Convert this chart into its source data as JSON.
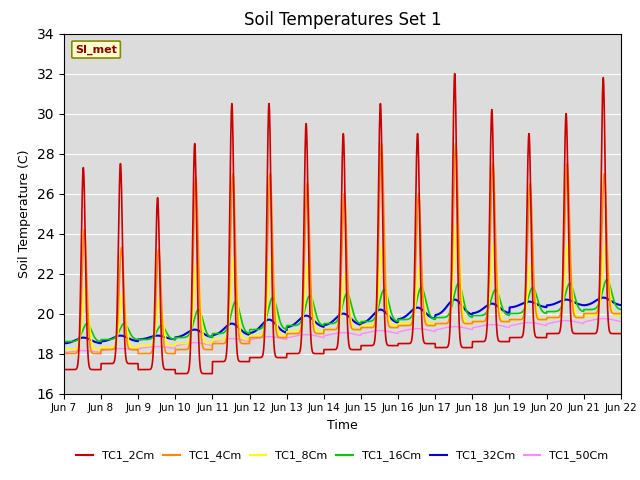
{
  "title": "Soil Temperatures Set 1",
  "xlabel": "Time",
  "ylabel": "Soil Temperature (C)",
  "ylim": [
    16,
    34
  ],
  "yticks": [
    16,
    18,
    20,
    22,
    24,
    26,
    28,
    30,
    32,
    34
  ],
  "annotation": "SI_met",
  "background_color": "#dcdcdc",
  "series": [
    {
      "label": "TC1_2Cm",
      "color": "#cc0000"
    },
    {
      "label": "TC1_4Cm",
      "color": "#ff8800"
    },
    {
      "label": "TC1_8Cm",
      "color": "#ffff00"
    },
    {
      "label": "TC1_16Cm",
      "color": "#00cc00"
    },
    {
      "label": "TC1_32Cm",
      "color": "#0000dd"
    },
    {
      "label": "TC1_50Cm",
      "color": "#ff88ff"
    }
  ],
  "num_days": 15,
  "start_day": 7,
  "points_per_day": 144,
  "base_temp_2cm": [
    17.2,
    17.5,
    17.2,
    17.0,
    17.6,
    17.8,
    18.0,
    18.2,
    18.4,
    18.5,
    18.3,
    18.6,
    18.8,
    19.0,
    19.0
  ],
  "peak_temp_2cm": [
    27.3,
    27.5,
    25.8,
    28.5,
    30.5,
    30.5,
    29.5,
    29.0,
    30.5,
    29.0,
    32.0,
    30.2,
    29.0,
    30.0,
    31.8
  ],
  "peak_hour_2cm": [
    0.52,
    0.52,
    0.52,
    0.52,
    0.52,
    0.52,
    0.52,
    0.52,
    0.52,
    0.52,
    0.52,
    0.52,
    0.52,
    0.52,
    0.52
  ],
  "base_temp_4cm": [
    18.0,
    18.2,
    18.0,
    18.2,
    18.5,
    18.8,
    19.0,
    19.2,
    19.3,
    19.4,
    19.5,
    19.6,
    19.7,
    19.8,
    20.0
  ],
  "peak_temp_4cm": [
    24.2,
    23.3,
    23.2,
    26.8,
    27.0,
    27.0,
    26.5,
    26.0,
    28.5,
    26.0,
    28.5,
    27.5,
    26.5,
    27.5,
    27.0
  ],
  "peak_hour_4cm": [
    0.55,
    0.55,
    0.55,
    0.55,
    0.55,
    0.55,
    0.55,
    0.55,
    0.55,
    0.55,
    0.55,
    0.55,
    0.55,
    0.55,
    0.55
  ],
  "base_temp_8cm": [
    18.2,
    18.3,
    18.4,
    18.5,
    18.7,
    18.9,
    19.1,
    19.2,
    19.4,
    19.5,
    19.5,
    19.6,
    19.7,
    19.8,
    19.9
  ],
  "peak_temp_8cm": [
    21.3,
    21.0,
    20.8,
    22.5,
    22.8,
    22.8,
    22.5,
    22.0,
    23.5,
    22.3,
    24.5,
    23.5,
    22.5,
    23.5,
    23.5
  ],
  "peak_hour_8cm": [
    0.58,
    0.58,
    0.58,
    0.58,
    0.58,
    0.58,
    0.58,
    0.58,
    0.58,
    0.58,
    0.58,
    0.58,
    0.58,
    0.58,
    0.58
  ],
  "base_temp_16cm": [
    18.6,
    18.7,
    18.7,
    18.8,
    19.0,
    19.2,
    19.4,
    19.5,
    19.6,
    19.7,
    19.8,
    19.9,
    20.0,
    20.1,
    20.2
  ],
  "peak_temp_16cm": [
    19.5,
    19.5,
    19.4,
    20.2,
    20.6,
    20.8,
    20.9,
    21.0,
    21.2,
    21.3,
    21.5,
    21.2,
    21.3,
    21.5,
    21.7
  ],
  "peak_hour_16cm": [
    0.62,
    0.62,
    0.62,
    0.62,
    0.62,
    0.62,
    0.62,
    0.62,
    0.62,
    0.62,
    0.62,
    0.62,
    0.62,
    0.62,
    0.62
  ],
  "base_temp_32cm": [
    18.5,
    18.6,
    18.7,
    18.8,
    18.9,
    19.0,
    19.3,
    19.4,
    19.5,
    19.7,
    19.9,
    20.0,
    20.3,
    20.4,
    20.4
  ],
  "peak_temp_32cm": [
    18.8,
    18.9,
    18.9,
    19.2,
    19.5,
    19.7,
    19.9,
    20.0,
    20.2,
    20.3,
    20.7,
    20.5,
    20.6,
    20.7,
    20.8
  ],
  "base_temp_50cm": [
    18.0,
    18.1,
    18.2,
    18.3,
    18.5,
    18.6,
    18.7,
    18.8,
    18.9,
    19.0,
    19.1,
    19.2,
    19.3,
    19.4,
    19.5
  ],
  "peak_temp_50cm": [
    18.15,
    18.25,
    18.35,
    18.55,
    18.75,
    18.85,
    18.95,
    19.05,
    19.15,
    19.25,
    19.35,
    19.45,
    19.55,
    19.65,
    19.75
  ]
}
